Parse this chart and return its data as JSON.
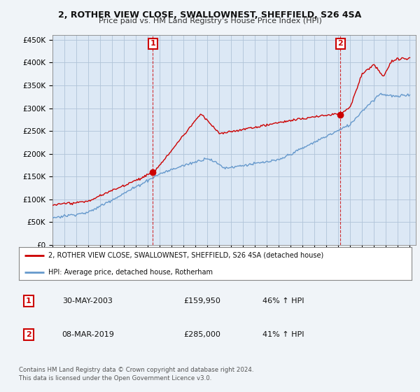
{
  "title": "2, ROTHER VIEW CLOSE, SWALLOWNEST, SHEFFIELD, S26 4SA",
  "subtitle": "Price paid vs. HM Land Registry's House Price Index (HPI)",
  "xlim_start": 1995.0,
  "xlim_end": 2025.5,
  "ylim": [
    0,
    460000
  ],
  "yticks": [
    0,
    50000,
    100000,
    150000,
    200000,
    250000,
    300000,
    350000,
    400000,
    450000
  ],
  "plot_bg_color": "#dce8f5",
  "grid_color": "#b0c4d8",
  "red_color": "#cc0000",
  "blue_color": "#6699cc",
  "transaction1_date": 2003.42,
  "transaction1_price": 159950,
  "transaction2_date": 2019.18,
  "transaction2_price": 285000,
  "legend_label_red": "2, ROTHER VIEW CLOSE, SWALLOWNEST, SHEFFIELD, S26 4SA (detached house)",
  "legend_label_blue": "HPI: Average price, detached house, Rotherham",
  "table_row1": [
    "1",
    "30-MAY-2003",
    "£159,950",
    "46% ↑ HPI"
  ],
  "table_row2": [
    "2",
    "08-MAR-2019",
    "£285,000",
    "41% ↑ HPI"
  ],
  "footer": "Contains HM Land Registry data © Crown copyright and database right 2024.\nThis data is licensed under the Open Government Licence v3.0.",
  "xticks": [
    1995,
    1996,
    1997,
    1998,
    1999,
    2000,
    2001,
    2002,
    2003,
    2004,
    2005,
    2006,
    2007,
    2008,
    2009,
    2010,
    2011,
    2012,
    2013,
    2014,
    2015,
    2016,
    2017,
    2018,
    2019,
    2020,
    2021,
    2022,
    2023,
    2024,
    2025
  ]
}
